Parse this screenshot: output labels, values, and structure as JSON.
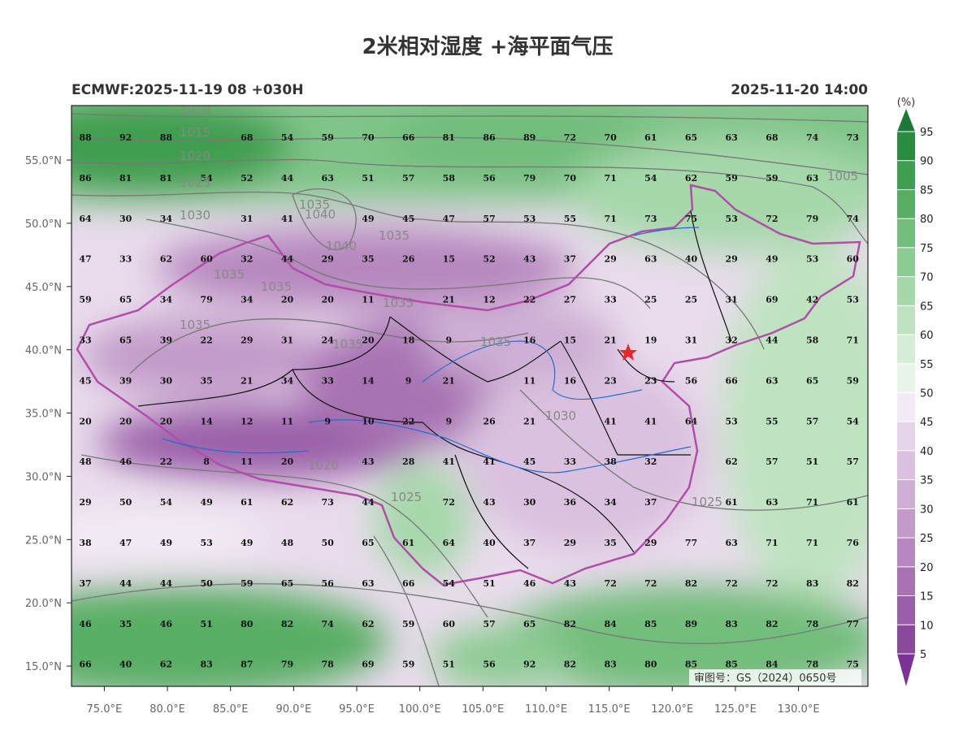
{
  "title": "2米相对湿度 +海平面气压",
  "subtitle_left": "ECMWF:2025-11-19 08 +030H",
  "subtitle_right": "2025-11-20 14:00",
  "colorbar": {
    "unit": "(%)",
    "lim": [
      5,
      95
    ],
    "ticks": [
      5,
      10,
      15,
      20,
      25,
      30,
      35,
      40,
      45,
      50,
      55,
      60,
      65,
      70,
      75,
      80,
      85,
      90,
      95
    ],
    "colors": [
      "#7b3294",
      "#8a4a9c",
      "#9a5fa8",
      "#a873b3",
      "#b587be",
      "#c29bc9",
      "#ceaed4",
      "#dac1df",
      "#e6d5ea",
      "#f2eaf4",
      "#eaf5ea",
      "#d5ecd6",
      "#bfe3c1",
      "#a6d8aa",
      "#8ccb92",
      "#72bd7b",
      "#58ae65",
      "#3f9e50",
      "#2b8c40",
      "#1b7a35"
    ]
  },
  "latlim": [
    13.4,
    59.3
  ],
  "lonlim": [
    72.4,
    135.5
  ],
  "lat_ticks": [
    {
      "value": 15,
      "label": "15.0°N"
    },
    {
      "value": 20,
      "label": "20.0°N"
    },
    {
      "value": 25,
      "label": "25.0°N"
    },
    {
      "value": 30,
      "label": "30.0°N"
    },
    {
      "value": 35,
      "label": "35.0°N"
    },
    {
      "value": 40,
      "label": "40.0°N"
    },
    {
      "value": 45,
      "label": "45.0°N"
    },
    {
      "value": 50,
      "label": "50.0°N"
    },
    {
      "value": 55,
      "label": "55.0°N"
    }
  ],
  "lon_ticks": [
    {
      "value": 75,
      "label": "75.0°E"
    },
    {
      "value": 80,
      "label": "80.0°E"
    },
    {
      "value": 85,
      "label": "85.0°E"
    },
    {
      "value": 90,
      "label": "90.0°E"
    },
    {
      "value": 95,
      "label": "95.0°E"
    },
    {
      "value": 100,
      "label": "100.0°E"
    },
    {
      "value": 105,
      "label": "105.0°E"
    },
    {
      "value": 110,
      "label": "110.0°E"
    },
    {
      "value": 115,
      "label": "115.0°E"
    },
    {
      "value": 120,
      "label": "120.0°E"
    },
    {
      "value": 125,
      "label": "125.0°E"
    },
    {
      "value": 130,
      "label": "130.0°E"
    }
  ],
  "stations": {
    "rows": [
      [
        88,
        92,
        88,
        null,
        68,
        54,
        59,
        70,
        66,
        81,
        86,
        89,
        72,
        70,
        61,
        65,
        63,
        68,
        74,
        73
      ],
      [
        86,
        81,
        81,
        54,
        52,
        44,
        63,
        51,
        57,
        58,
        56,
        79,
        70,
        71,
        54,
        62,
        59,
        59,
        63,
        null
      ],
      [
        64,
        30,
        34,
        null,
        31,
        41,
        null,
        49,
        45,
        47,
        57,
        53,
        55,
        71,
        73,
        75,
        53,
        72,
        79,
        74
      ],
      [
        47,
        33,
        62,
        60,
        32,
        44,
        29,
        35,
        26,
        15,
        52,
        43,
        37,
        29,
        63,
        40,
        29,
        49,
        53,
        60
      ],
      [
        59,
        65,
        34,
        79,
        34,
        20,
        20,
        11,
        null,
        21,
        12,
        22,
        27,
        33,
        25,
        25,
        31,
        69,
        42,
        53
      ],
      [
        33,
        65,
        39,
        22,
        29,
        31,
        24,
        20,
        18,
        9,
        null,
        16,
        15,
        21,
        19,
        31,
        32,
        44,
        58,
        71
      ],
      [
        45,
        39,
        30,
        35,
        21,
        34,
        33,
        14,
        9,
        21,
        null,
        11,
        16,
        23,
        23,
        56,
        66,
        63,
        65,
        59
      ],
      [
        20,
        20,
        20,
        14,
        12,
        11,
        9,
        10,
        22,
        9,
        26,
        21,
        null,
        41,
        41,
        64,
        53,
        55,
        57,
        54
      ],
      [
        48,
        46,
        22,
        8,
        11,
        20,
        null,
        43,
        28,
        41,
        41,
        45,
        33,
        38,
        32,
        null,
        62,
        57,
        51,
        57
      ],
      [
        29,
        50,
        54,
        49,
        61,
        62,
        73,
        44,
        null,
        72,
        43,
        30,
        36,
        34,
        37,
        null,
        61,
        63,
        71,
        61
      ],
      [
        38,
        47,
        49,
        53,
        49,
        48,
        50,
        65,
        61,
        64,
        40,
        37,
        29,
        35,
        29,
        77,
        63,
        71,
        71,
        76
      ],
      [
        37,
        44,
        44,
        50,
        59,
        65,
        56,
        63,
        66,
        54,
        51,
        46,
        43,
        72,
        72,
        82,
        72,
        72,
        83,
        82
      ],
      [
        46,
        35,
        46,
        51,
        80,
        82,
        74,
        62,
        59,
        60,
        57,
        65,
        82,
        84,
        85,
        89,
        83,
        82,
        78,
        77
      ],
      [
        66,
        40,
        62,
        83,
        87,
        79,
        78,
        69,
        59,
        51,
        56,
        92,
        82,
        83,
        80,
        85,
        85,
        84,
        78,
        75
      ]
    ]
  },
  "isobar_labels": [
    "1010",
    "1015",
    "1020",
    "1025",
    "1030",
    "1035",
    "1040",
    "1040",
    "1035",
    "1035",
    "1035",
    "1035",
    "1035",
    "1035",
    "1035",
    "1030",
    "1020",
    "1025",
    "1025",
    "1005"
  ],
  "attribution": "审图号：GS（2024）0650号"
}
